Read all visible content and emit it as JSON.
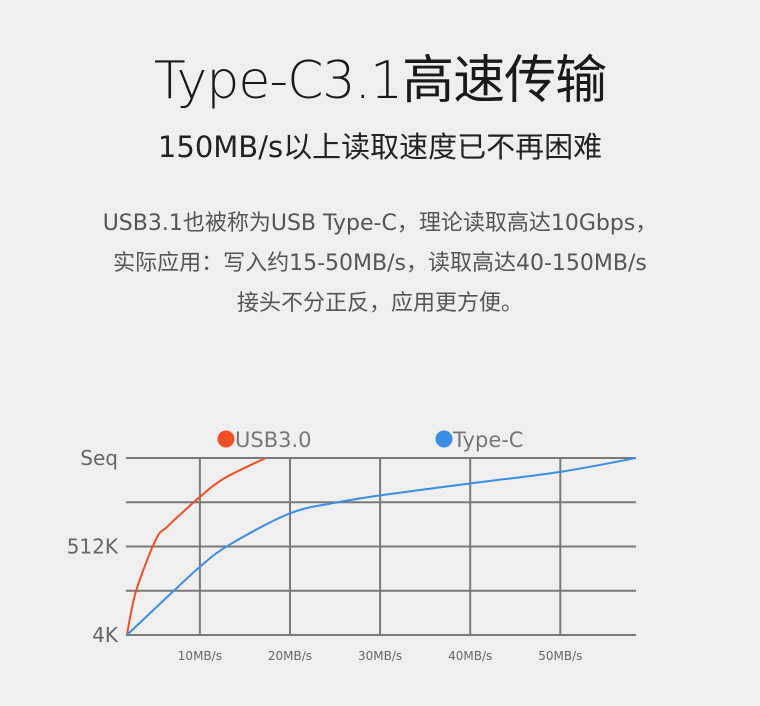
{
  "header": {
    "title": "Type-C3.1高速传输",
    "subtitle": "150MB/s以上读取速度已不再困难"
  },
  "description": [
    "USB3.1也被称为USB Type-C，理论读取高达10Gbps，",
    "实际应用：写入约15-50MB/s，读取高达40-150MB/s",
    "接头不分正反，应用更方便。"
  ],
  "chart_data": {
    "type": "line",
    "title": "",
    "xlabel": "",
    "ylabel": "",
    "x_ticks": [
      10,
      20,
      30,
      40,
      50
    ],
    "x_tick_labels": [
      "10MB/s",
      "20MB/s",
      "30MB/s",
      "40MB/s",
      "50MB/s"
    ],
    "xlim": [
      1.8,
      58.4
    ],
    "y_levels": [
      0,
      1,
      2,
      3,
      4
    ],
    "y_tick_labels": [
      {
        "level": 0,
        "label": "4K"
      },
      {
        "level": 2,
        "label": "512K"
      },
      {
        "level": 4,
        "label": "Seq"
      }
    ],
    "ylim": [
      0,
      4
    ],
    "grid": true,
    "legend": "top",
    "series": [
      {
        "name": "USB3.0",
        "color": "#f04e23",
        "points": [
          [
            1.9,
            0
          ],
          [
            2.9,
            0.98
          ],
          [
            5.1,
            2.15
          ],
          [
            6.4,
            2.45
          ],
          [
            10,
            3.12
          ],
          [
            12.7,
            3.54
          ],
          [
            17.2,
            3.99
          ]
        ]
      },
      {
        "name": "Type-C",
        "color": "#3a8ee6",
        "points": [
          [
            1.9,
            0
          ],
          [
            6.8,
            0.94
          ],
          [
            10,
            1.54
          ],
          [
            13.2,
            2.03
          ],
          [
            20,
            2.75
          ],
          [
            25.1,
            2.99
          ],
          [
            30.2,
            3.16
          ],
          [
            40.2,
            3.43
          ],
          [
            50.1,
            3.69
          ],
          [
            58.4,
            4.0
          ]
        ]
      }
    ]
  }
}
